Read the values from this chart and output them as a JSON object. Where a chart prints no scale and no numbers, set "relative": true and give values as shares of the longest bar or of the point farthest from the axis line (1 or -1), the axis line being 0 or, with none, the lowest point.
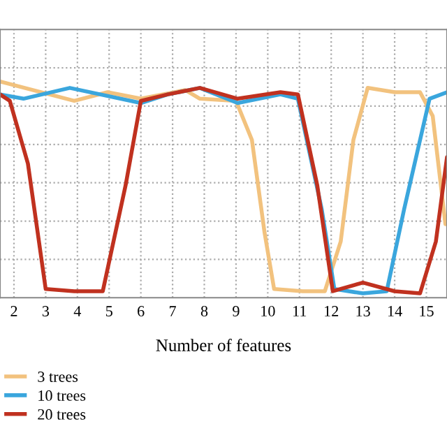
{
  "chart_data": {
    "type": "line",
    "relative": true,
    "xlabel": "Number of features",
    "xlim": [
      1.56,
      15.65
    ],
    "xticks": [
      2,
      3,
      4,
      5,
      6,
      7,
      8,
      9,
      10,
      11,
      12,
      13,
      14,
      15
    ],
    "grid": true,
    "legend": "bottom left",
    "tick_labels": "x",
    "marker": "none",
    "line_style": "solid",
    "series": [
      {
        "name": "3 trees",
        "color": "#f2c27e",
        "x": [
          1.56,
          3.9,
          4.95,
          6.0,
          7.4,
          7.86,
          9.0,
          9.5,
          9.9,
          10.2,
          11.1,
          11.8,
          12.3,
          12.7,
          13.15,
          14.0,
          14.8,
          15.2,
          15.6
        ],
        "values": [
          1.0,
          0.91,
          0.95,
          0.92,
          0.96,
          0.92,
          0.91,
          0.73,
          0.3,
          0.04,
          0.03,
          0.03,
          0.26,
          0.73,
          0.97,
          0.95,
          0.95,
          0.84,
          0.34
        ]
      },
      {
        "name": "10 trees",
        "color": "#3aa6dd",
        "x": [
          1.56,
          2.3,
          3.76,
          6.0,
          6.85,
          7.86,
          9.05,
          10.4,
          10.95,
          11.7,
          12.1,
          13.0,
          13.75,
          14.3,
          15.1,
          15.65
        ],
        "values": [
          0.94,
          0.92,
          0.97,
          0.9,
          0.94,
          0.97,
          0.9,
          0.94,
          0.92,
          0.41,
          0.04,
          0.02,
          0.03,
          0.41,
          0.92,
          0.95
        ]
      },
      {
        "name": "20 trees",
        "color": "#c0311f",
        "x": [
          1.56,
          1.87,
          2.44,
          3.0,
          3.9,
          4.8,
          5.52,
          6.0,
          6.85,
          7.86,
          9.05,
          10.4,
          10.95,
          11.56,
          12.05,
          13.0,
          14.0,
          14.8,
          15.3,
          15.65
        ],
        "values": [
          0.94,
          0.91,
          0.62,
          0.04,
          0.03,
          0.03,
          0.52,
          0.91,
          0.94,
          0.97,
          0.92,
          0.95,
          0.94,
          0.52,
          0.03,
          0.07,
          0.03,
          0.02,
          0.26,
          0.65
        ]
      }
    ]
  }
}
